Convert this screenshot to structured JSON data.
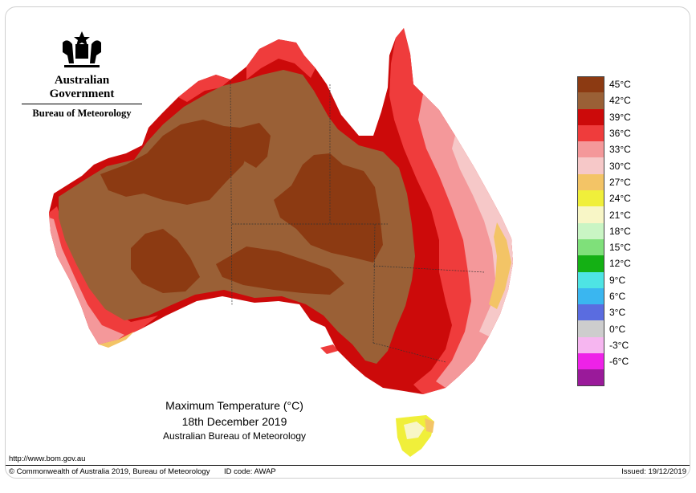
{
  "logo": {
    "icon": "coat-of-arms-icon",
    "government": "Australian Government",
    "bureau": "Bureau of Meteorology"
  },
  "legend": [
    {
      "label": "45°C",
      "color": "#8c3a12"
    },
    {
      "label": "42°C",
      "color": "#9a6036"
    },
    {
      "label": "39°C",
      "color": "#cc0a0a"
    },
    {
      "label": "36°C",
      "color": "#ef3c3c"
    },
    {
      "label": "33°C",
      "color": "#f4989a"
    },
    {
      "label": "30°C",
      "color": "#f6c8c8"
    },
    {
      "label": "27°C",
      "color": "#f3c466"
    },
    {
      "label": "24°C",
      "color": "#f0ef3a"
    },
    {
      "label": "21°C",
      "color": "#f8f6c6"
    },
    {
      "label": "18°C",
      "color": "#c9f5c4"
    },
    {
      "label": "15°C",
      "color": "#7fe07a"
    },
    {
      "label": "12°C",
      "color": "#14b014"
    },
    {
      "label": "9°C",
      "color": "#4ee4e4"
    },
    {
      "label": "6°C",
      "color": "#3ab6f0"
    },
    {
      "label": "3°C",
      "color": "#5a6ce0"
    },
    {
      "label": "0°C",
      "color": "#cdcdcd"
    },
    {
      "label": "-3°C",
      "color": "#f6b6f0"
    },
    {
      "label": "-6°C",
      "color": "#ee22e8"
    },
    {
      "label": "",
      "color": "#9a1a9a"
    }
  ],
  "caption": {
    "title": "Maximum Temperature (°C)",
    "date": "18th December 2019",
    "source": "Australian Bureau of Meteorology"
  },
  "footer": {
    "url": "http://www.bom.gov.au",
    "copyright": "© Commonwealth of Australia 2019, Bureau of Meteorology",
    "id_code": "ID code: AWAP",
    "issued": "Issued: 19/12/2019"
  }
}
